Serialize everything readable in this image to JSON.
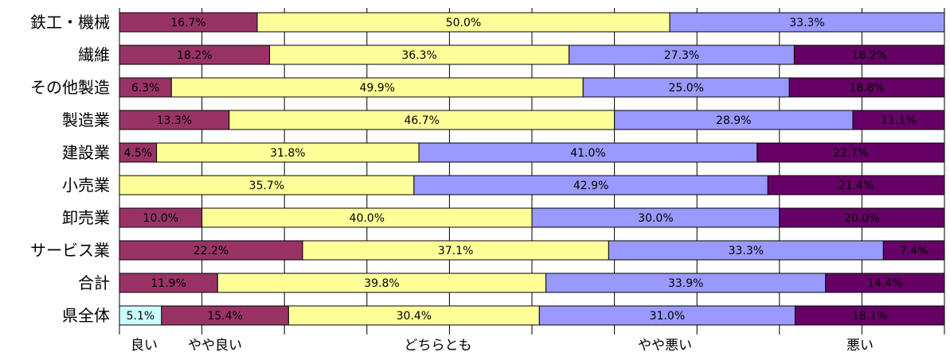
{
  "chart_data": {
    "type": "bar",
    "orientation": "horizontal",
    "stacked": true,
    "percent_stacked": true,
    "categories": [
      "鉄工・機械",
      "繊維",
      "その他製造",
      "製造業",
      "建設業",
      "小売業",
      "卸売業",
      "サービス業",
      "合計",
      "県全体"
    ],
    "series": [
      {
        "name": "良い",
        "color": "#ccffff",
        "values": [
          0,
          0,
          0,
          0,
          0,
          0,
          0,
          0,
          0,
          5.1
        ],
        "labels": [
          "",
          "",
          "",
          "",
          "",
          "",
          "",
          "",
          "",
          "5.1%"
        ]
      },
      {
        "name": "やや良い",
        "color": "#993366",
        "values": [
          16.7,
          18.2,
          6.3,
          13.3,
          4.5,
          0,
          10.0,
          22.2,
          11.9,
          15.4
        ],
        "labels": [
          "16.7%",
          "18.2%",
          "6.3%",
          "13.3%",
          "4.5%",
          "",
          "10.0%",
          "22.2%",
          "11.9%",
          "15.4%"
        ]
      },
      {
        "name": "どちらとも",
        "color": "#ffff99",
        "values": [
          50.0,
          36.3,
          49.9,
          46.7,
          31.8,
          35.7,
          40.0,
          37.1,
          39.8,
          30.4
        ],
        "labels": [
          "50.0%",
          "36.3%",
          "49.9%",
          "46.7%",
          "31.8%",
          "35.7%",
          "40.0%",
          "37.1%",
          "39.8%",
          "30.4%"
        ]
      },
      {
        "name": "やや悪い",
        "color": "#9999ff",
        "values": [
          33.3,
          27.3,
          25.0,
          28.9,
          41.0,
          42.9,
          30.0,
          33.3,
          33.9,
          31.0
        ],
        "labels": [
          "33.3%",
          "27.3%",
          "25.0%",
          "28.9%",
          "41.0%",
          "42.9%",
          "30.0%",
          "33.3%",
          "33.9%",
          "31.0%"
        ]
      },
      {
        "name": "悪い",
        "color": "#660066",
        "values": [
          0,
          18.2,
          18.8,
          11.1,
          22.7,
          21.4,
          20.0,
          7.4,
          14.4,
          18.1
        ],
        "labels": [
          "",
          "18.2%",
          "18.8%",
          "11.1%",
          "22.7%",
          "21.4%",
          "20.0%",
          "7.4%",
          "14.4%",
          "18.1%"
        ]
      }
    ],
    "xlim": [
      0,
      100
    ],
    "grid": true,
    "legend_position": "bottom"
  }
}
